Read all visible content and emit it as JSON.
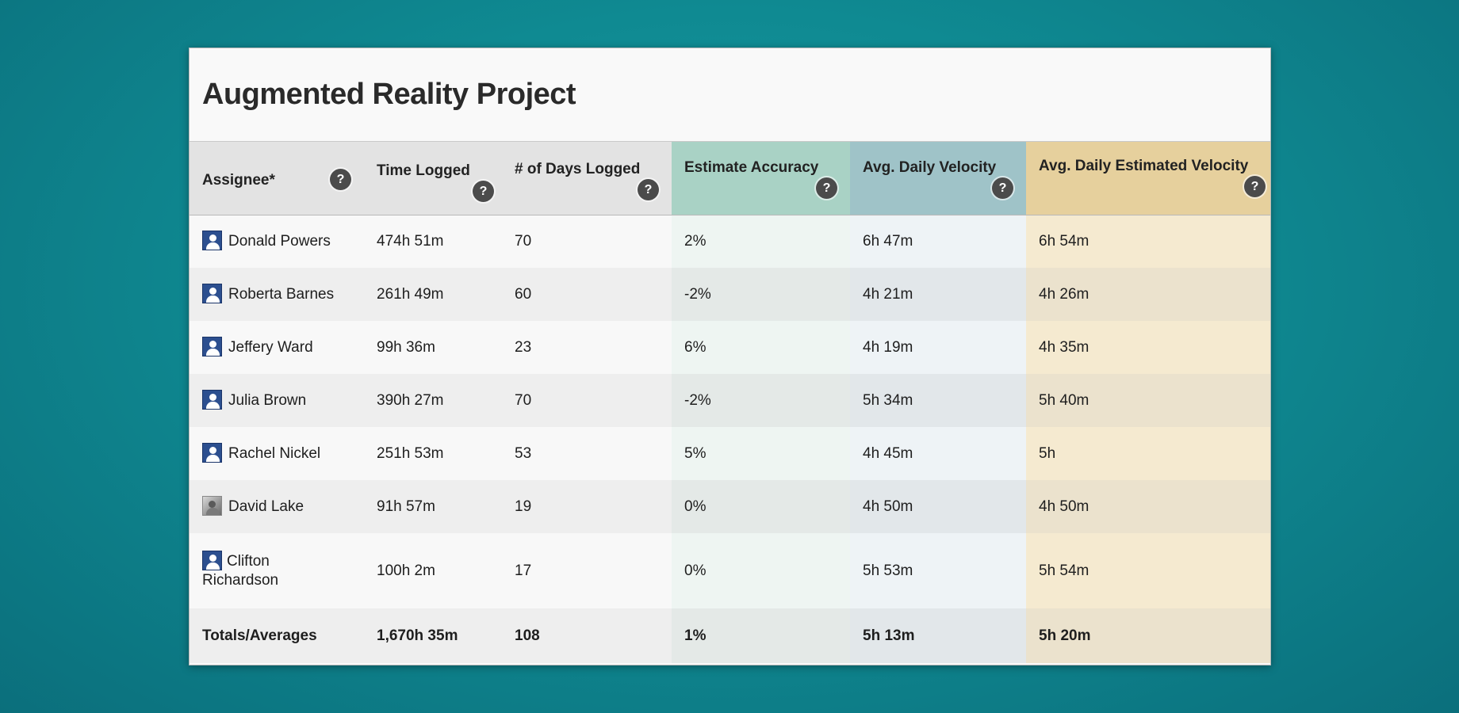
{
  "report": {
    "title": "Augmented Reality Project"
  },
  "columns": {
    "assignee": "Assignee*",
    "time_logged": "Time Logged",
    "days_logged": "# of Days Logged",
    "estimate_accuracy": "Estimate Accuracy",
    "avg_daily_velocity": "Avg. Daily Velocity",
    "avg_daily_estimated_velocity": "Avg. Daily Estimated Velocity",
    "help_glyph": "?"
  },
  "colors": {
    "background": "#0f8a92",
    "estimate_accuracy_header": "#a9d2c5",
    "avg_daily_velocity_header": "#9fc3c8",
    "avg_daily_estimated_velocity_header": "#e6d09d",
    "avatar_default": "#2c4f8f"
  },
  "rows": [
    {
      "name": "Donald Powers",
      "avatar": "default-avatar-icon",
      "time": "474h 51m",
      "days": "70",
      "accuracy": "2%",
      "velocity": "6h 47m",
      "est_velocity": "6h 54m"
    },
    {
      "name": "Roberta Barnes",
      "avatar": "default-avatar-icon",
      "time": "261h 49m",
      "days": "60",
      "accuracy": "-2%",
      "velocity": "4h 21m",
      "est_velocity": "4h 26m"
    },
    {
      "name": "Jeffery Ward",
      "avatar": "default-avatar-icon",
      "time": "99h 36m",
      "days": "23",
      "accuracy": "6%",
      "velocity": "4h 19m",
      "est_velocity": "4h 35m"
    },
    {
      "name": "Julia Brown",
      "avatar": "default-avatar-icon",
      "time": "390h 27m",
      "days": "70",
      "accuracy": "-2%",
      "velocity": "5h 34m",
      "est_velocity": "5h 40m"
    },
    {
      "name": "Rachel Nickel",
      "avatar": "default-avatar-icon",
      "time": "251h 53m",
      "days": "53",
      "accuracy": "5%",
      "velocity": "4h 45m",
      "est_velocity": "5h"
    },
    {
      "name": "David Lake",
      "avatar": "photo-avatar-icon",
      "time": "91h 57m",
      "days": "19",
      "accuracy": "0%",
      "velocity": "4h 50m",
      "est_velocity": "4h 50m"
    },
    {
      "name_first": "Clifton",
      "name_last": "Richardson",
      "avatar": "default-avatar-icon",
      "time": "100h 2m",
      "days": "17",
      "accuracy": "0%",
      "velocity": "5h 53m",
      "est_velocity": "5h 54m"
    }
  ],
  "totals": {
    "label": "Totals/Averages",
    "time": "1,670h 35m",
    "days": "108",
    "accuracy": "1%",
    "velocity": "5h 13m",
    "est_velocity": "5h 20m"
  }
}
